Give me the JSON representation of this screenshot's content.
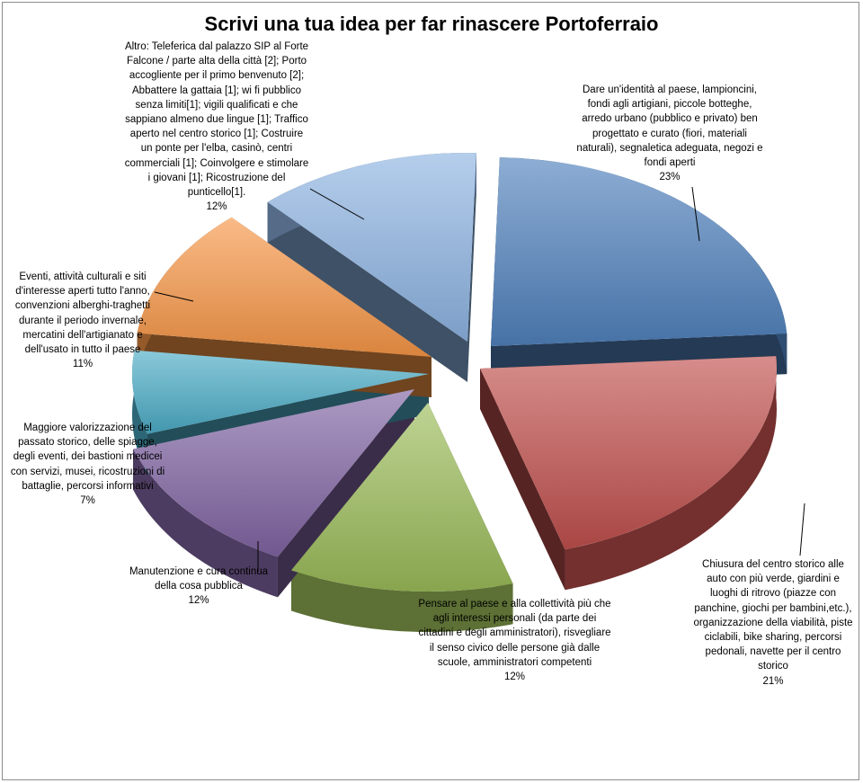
{
  "colors": {
    "blue": "#4f81bd",
    "red": "#c0504d",
    "green": "#9bbb59",
    "purple": "#8064a2",
    "cyan": "#4bacc6",
    "orange": "#f79646",
    "lightblue": "#8db3e2"
  },
  "chart_data": {
    "type": "pie",
    "title": "Scrivi una tua idea per far rinascere Portoferraio",
    "slices": [
      {
        "label": "Dare un'identità al paese, lampioncini, fondi agli artigiani, piccole botteghe, arredo urbano (pubblico e privato) ben progettato e curato (fiori, materiali naturali), segnaletica adeguata, negozi e fondi aperti",
        "percent_label": "23%",
        "value": 23,
        "color": "#4f81bd"
      },
      {
        "label": "Chiusura del centro storico alle auto con più verde, giardini e luoghi di ritrovo (piazze con panchine, giochi per bambini,etc.), organizzazione della viabilità, piste ciclabili, bike sharing, percorsi pedonali, navette per il centro storico",
        "percent_label": "21%",
        "value": 21,
        "color": "#c0504d"
      },
      {
        "label": "Pensare al paese e alla collettività più che agli interessi personali (da parte dei cittadini e degli amministratori), risvegliare il senso civico delle persone già dalle scuole, amministratori competenti",
        "percent_label": "12%",
        "value": 12,
        "color": "#9bbb59"
      },
      {
        "label": "Manutenzione e cura continua della cosa pubblica",
        "percent_label": "12%",
        "value": 12,
        "color": "#8064a2"
      },
      {
        "label": "Maggiore valorizzazione del passato storico, delle spiagge, degli eventi, dei bastioni medicei con servizi, musei, ricostruzioni di battaglie, percorsi informativi",
        "percent_label": "7%",
        "value": 7,
        "color": "#4bacc6"
      },
      {
        "label": "Eventi, attività culturali e siti d'interesse aperti tutto l'anno, convenzioni alberghi-traghetti durante il periodo invernale, mercatini dell'artigianato e dell'usato in tutto il paese",
        "percent_label": "11%",
        "value": 11,
        "color": "#f79646"
      },
      {
        "label": "Altro: Teleferica dal palazzo SIP al Forte Falcone / parte alta della città [2]; Porto accogliente per il primo benvenuto [2]; Abbattere la gattaia [1]; wi fi pubblico senza limiti[1]; vigili qualificati e che sappiano almeno due lingue [1]; Traffico aperto nel centro storico [1]; Costruire un ponte per l'elba, casinò, centri commerciali [1]; Coinvolgere e stimolare i giovani [1]; Ricostruzione del punticello[1].",
        "percent_label": "12%",
        "value": 12,
        "color": "#8db3e2"
      }
    ]
  }
}
